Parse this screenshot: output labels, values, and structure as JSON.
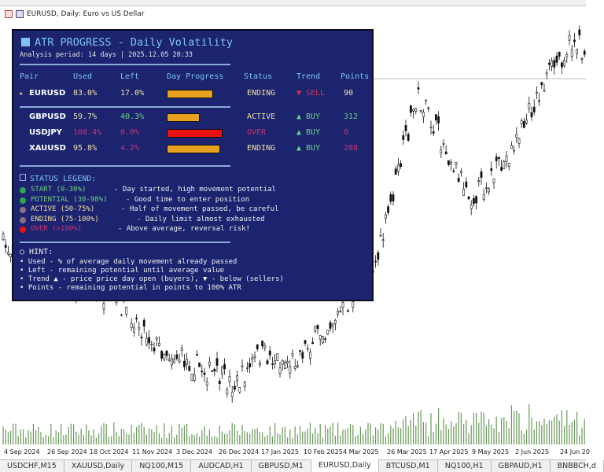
{
  "window": {
    "title": "EURUSD, Daily:  Euro vs US Dellar"
  },
  "panel": {
    "title": "ATR PROGRESS - Daily Volatility",
    "subtitle": "Analysis periad: 14 days | 2025.12.05 20:33",
    "headers": [
      "Pair",
      "Used",
      "Left",
      "Day Progress",
      "Status",
      "Trend",
      "Points"
    ],
    "current": {
      "marker": "★",
      "pair": "EURUSD",
      "used": "83.0%",
      "left": "17.0%",
      "progress": 83.0,
      "status": "ENDING",
      "trend": "▼ SELL",
      "points": "90",
      "bar_color": "#e8a020",
      "used_color": "#f0e0a0",
      "left_color": "#f0e0a0",
      "status_color": "#f0e0a0",
      "trend_color": "#e0304a",
      "points_color": "#f0e0a0"
    },
    "rows": [
      {
        "pair": "GBPUSD",
        "used": "59.7%",
        "left": "40.3%",
        "progress": 59.7,
        "status": "ACTIVE",
        "trend": "▲ BUY",
        "points": "312",
        "bar_color": "#e8a020",
        "used_color": "#f0e0a0",
        "left_color": "#6fd07a",
        "status_color": "#f0e0a0",
        "trend_color": "#6fd07a",
        "points_color": "#6fd07a"
      },
      {
        "pair": "USDJPY",
        "used": "108.4%",
        "left": "0.0%",
        "progress": 100,
        "status": "OVER",
        "trend": "▲ BUY",
        "points": "0",
        "bar_color": "#ee1010",
        "used_color": "#d0306a",
        "left_color": "#d0306a",
        "status_color": "#d0306a",
        "trend_color": "#6fd07a",
        "points_color": "#d0306a"
      },
      {
        "pair": "XAUUSD",
        "used": "95.8%",
        "left": "4.2%",
        "progress": 95.8,
        "status": "ENDING",
        "trend": "▲ BUY",
        "points": "288",
        "bar_color": "#e8a020",
        "used_color": "#f0e0a0",
        "left_color": "#d0306a",
        "status_color": "#f0e0a0",
        "trend_color": "#6fd07a",
        "points_color": "#d0306a"
      }
    ],
    "legend": {
      "title": "STATUS LEGEND:",
      "items": [
        {
          "label": "START (0-30%)",
          "desc": "- Day started, high movement potential",
          "color": "#6fd07a",
          "dot": "#2aa84a"
        },
        {
          "label": "POTENTIAL (30-98%)",
          "desc": "- Good time to enter position",
          "color": "#6fd07a",
          "dot": "#2aa84a"
        },
        {
          "label": "ACTIVE (50-75%)",
          "desc": "- Half of movement passed, be careful",
          "color": "#f0e0a0",
          "dot": "#8a7080"
        },
        {
          "label": "ENDING (75-100%)",
          "desc": "- Daily limit almost exhausted",
          "color": "#f0e0a0",
          "dot": "#8a7080"
        },
        {
          "label": "OVER (>100%)",
          "desc": "- Above average, reversal risk!",
          "color": "#d0306a",
          "dot": "#ee1010"
        }
      ]
    },
    "hint": {
      "title": "HINT:",
      "items": [
        "• Used - % of average daily movement already passed",
        "• Left - remaining potential until average value",
        "• Trend ▲ - price price day open (buyers), ▼ - below (sellers)",
        "• Points - remaining potential in points to 100% ATR"
      ]
    }
  },
  "axis_dates": [
    "4 Sep 2024",
    "26 Sep 2024",
    "18 Oct 2024",
    "11 Nov 2024",
    "3 Dec 2024",
    "26 Dec 2024",
    "17 Jan 2025",
    "10 Feb 2025",
    "4 Mar 2025",
    "26 Mar 2025",
    "17 Apr 2025",
    "9 May 2025",
    "2 Jun 2025",
    "24 Jun 20"
  ],
  "tabs": [
    "USDCHF,M15",
    "XAUUSD,Daily",
    "NQ100,M15",
    "AUDCAD,H1",
    "GBPUSD,M1",
    "EURUSD,Daily",
    "BTCUSD,M1",
    "NQ100,H1",
    "GBPAUD,H1",
    "BNBBCH,d"
  ],
  "active_tab": "EURUSD,Daily"
}
